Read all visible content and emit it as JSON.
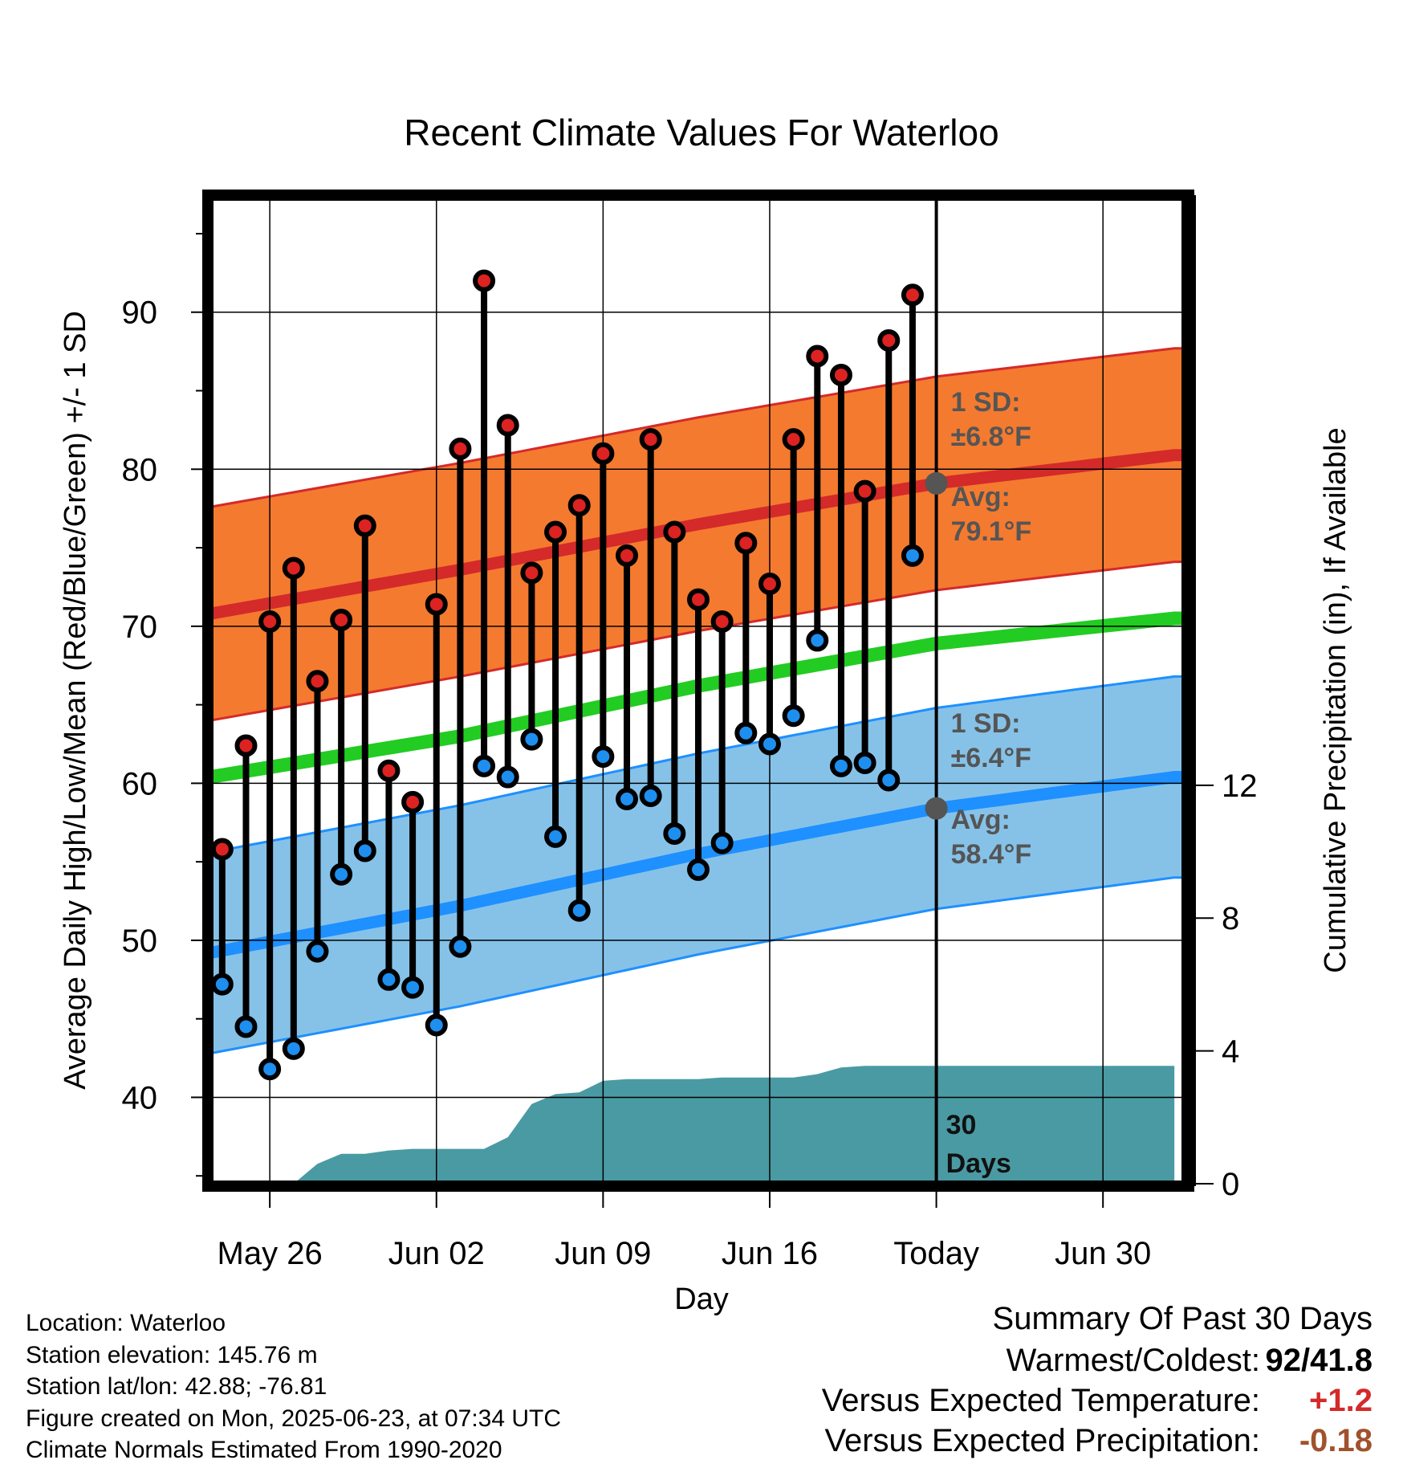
{
  "chart_data": {
    "type": "line",
    "title": "Recent Climate Values For Waterloo",
    "xlabel": "Day",
    "ylabel_left": "Average Daily High/Low/Mean (Red/Blue/Green) +/- 1 SD",
    "ylabel_right": "Cumulative Precipitation (in), If Available",
    "x_tick_labels": [
      "May 26",
      "Jun 02",
      "Jun 09",
      "Jun 16",
      "Today",
      "Jun 30"
    ],
    "y_left_ticks": [
      "40",
      "50",
      "60",
      "70",
      "80",
      "90"
    ],
    "y_right_ticks": [
      "0",
      "4",
      "8",
      "12"
    ],
    "ylim_left": [
      34.5,
      97.3
    ],
    "ylim_right": [
      0,
      29.7
    ],
    "xlim_days": [
      -30.5,
      10.5
    ],
    "x_unit": "days relative to today (2025-06-23)",
    "colors": {
      "high_band": "#f47a2f",
      "high_line": "#d42a2a",
      "low_band": "#86c2e8",
      "low_line": "#1e90ff",
      "mean_line": "#22cc22",
      "precip": "#4a9aa4",
      "high_marker": "#dd2222",
      "low_marker": "#1e8fef",
      "today_marker": "#555555",
      "annotation": "#555555",
      "warm_value": "#d42a2a",
      "precip_value": "#a0522d"
    },
    "normal_high": {
      "x": [
        -30.5,
        -20,
        -10,
        0,
        10
      ],
      "mean": [
        70.8,
        73.6,
        76.5,
        79.1,
        80.9
      ],
      "sd": 6.8
    },
    "normal_low": {
      "x": [
        -30.5,
        -20,
        -10,
        0,
        10
      ],
      "mean": [
        49.2,
        52.2,
        55.5,
        58.4,
        60.4
      ],
      "sd": 6.4
    },
    "normal_mean": {
      "x": [
        -30.5,
        -20,
        -10,
        0,
        10
      ],
      "values": [
        60.4,
        63.0,
        66.2,
        68.9,
        70.5
      ]
    },
    "today_annotations": {
      "high": {
        "sd_label": "1 SD:",
        "sd_value": "±6.8°F",
        "avg_label": "Avg:",
        "avg_value": "79.1°F"
      },
      "low": {
        "sd_label": "1 SD:",
        "sd_value": "±6.4°F",
        "avg_label": "Avg:",
        "avg_value": "58.4°F"
      },
      "days_label_1": "30",
      "days_label_2": "Days"
    },
    "daily": {
      "x": [
        -30,
        -29,
        -28,
        -27,
        -26,
        -25,
        -24,
        -23,
        -22,
        -21,
        -20,
        -19,
        -18,
        -17,
        -16,
        -15,
        -14,
        -13,
        -12,
        -11,
        -10,
        -9,
        -8,
        -7,
        -6,
        -5,
        -4,
        -3,
        -2,
        -1
      ],
      "high": [
        55.8,
        62.4,
        70.3,
        73.7,
        66.5,
        70.4,
        76.4,
        60.8,
        58.8,
        71.4,
        81.3,
        92.0,
        82.8,
        73.4,
        76.0,
        77.7,
        81.0,
        74.5,
        81.9,
        76.0,
        71.7,
        70.3,
        75.3,
        72.7,
        81.9,
        87.2,
        86.0,
        78.6,
        88.2,
        91.1
      ],
      "low": [
        47.2,
        44.5,
        41.8,
        43.1,
        49.3,
        54.2,
        55.7,
        47.5,
        47.0,
        44.6,
        49.6,
        61.1,
        60.4,
        62.8,
        56.6,
        51.9,
        61.7,
        59.0,
        59.2,
        56.8,
        54.5,
        56.2,
        63.2,
        62.5,
        64.3,
        69.1,
        61.1,
        61.3,
        60.2,
        74.5
      ]
    },
    "precip_cumulative": {
      "x": [
        -27,
        -26,
        -25,
        -24,
        -23,
        -22,
        -21,
        -20,
        -19,
        -18,
        -17,
        -16,
        -15,
        -14,
        -13,
        -12,
        -11,
        -10,
        -9,
        -8,
        -7,
        -6,
        -5,
        -4,
        -3,
        -2,
        -1,
        0,
        10
      ],
      "values": [
        0.0,
        0.6,
        0.9,
        0.9,
        1.0,
        1.05,
        1.05,
        1.05,
        1.05,
        1.4,
        2.4,
        2.7,
        2.75,
        3.1,
        3.15,
        3.15,
        3.15,
        3.15,
        3.2,
        3.2,
        3.2,
        3.2,
        3.3,
        3.5,
        3.55,
        3.55,
        3.55,
        3.55,
        3.55
      ]
    }
  },
  "footer": {
    "location": "Location: Waterloo",
    "elevation": "Station elevation: 145.76 m",
    "latlon": "Station lat/lon: 42.88; -76.81",
    "created": "Figure created on Mon, 2025-06-23, at 07:34 UTC",
    "normals": "Climate Normals Estimated From 1990-2020"
  },
  "summary": {
    "heading": "Summary Of Past 30 Days",
    "warm_cold_label": "Warmest/Coldest:",
    "warm_cold_value": "92/41.8",
    "temp_label": "Versus Expected Temperature:",
    "temp_value": "+1.2",
    "precip_label": "Versus Expected Precipitation:",
    "precip_value": "-0.18"
  }
}
